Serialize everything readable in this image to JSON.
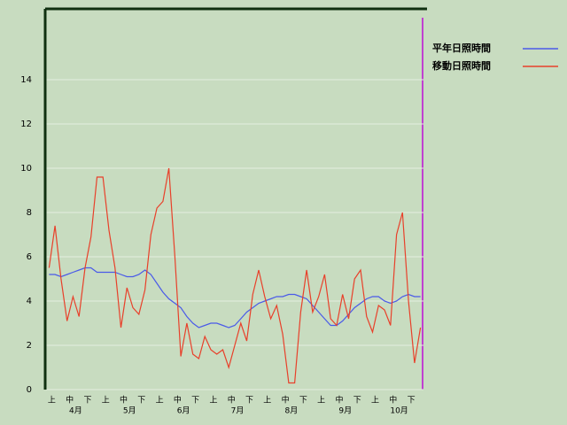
{
  "chart_data": {
    "type": "line",
    "categories": [
      "上",
      null,
      null,
      "中",
      null,
      null,
      "下",
      null,
      null,
      "上",
      null,
      null,
      "中",
      null,
      null,
      "下",
      null,
      null,
      "上",
      null,
      null,
      "中",
      null,
      null,
      "下",
      null,
      null,
      "上",
      null,
      null,
      "中",
      null,
      null,
      "下",
      null,
      null,
      "上",
      null,
      null,
      "中",
      null,
      null,
      "下",
      null,
      null,
      "上",
      null,
      null,
      "中",
      null,
      null,
      "下",
      null,
      null,
      "上",
      null,
      null,
      "中",
      null,
      null,
      "下",
      null,
      null
    ],
    "months": [
      "4月",
      "5月",
      "6月",
      "7月",
      "8月",
      "9月",
      "10月"
    ],
    "ylim": [
      0,
      17.2
    ],
    "yticks": [
      0,
      2,
      4,
      6,
      8,
      10,
      12,
      14
    ],
    "grid": true,
    "series": [
      {
        "name": "平年日照時間",
        "color": "#4a5ae8",
        "values": [
          5.2,
          5.2,
          5.1,
          5.2,
          5.3,
          5.4,
          5.5,
          5.5,
          5.3,
          5.3,
          5.3,
          5.3,
          5.2,
          5.1,
          5.1,
          5.2,
          5.4,
          5.2,
          4.8,
          4.4,
          4.1,
          3.9,
          3.7,
          3.3,
          3.0,
          2.8,
          2.9,
          3.0,
          3.0,
          2.9,
          2.8,
          2.9,
          3.2,
          3.5,
          3.7,
          3.9,
          4.0,
          4.1,
          4.2,
          4.2,
          4.3,
          4.3,
          4.2,
          4.1,
          3.8,
          3.5,
          3.2,
          2.9,
          2.9,
          3.1,
          3.4,
          3.7,
          3.9,
          4.1,
          4.2,
          4.2,
          4.0,
          3.9,
          4.0,
          4.2,
          4.3,
          4.2,
          4.2
        ]
      },
      {
        "name": "移動日照時間",
        "color": "#e8402a",
        "values": [
          5.5,
          7.4,
          5.0,
          3.1,
          4.2,
          3.3,
          5.5,
          6.9,
          9.6,
          9.6,
          7.2,
          5.5,
          2.8,
          4.6,
          3.7,
          3.4,
          4.5,
          7.0,
          8.2,
          8.5,
          10.0,
          6.0,
          1.5,
          3.0,
          1.6,
          1.4,
          2.4,
          1.8,
          1.6,
          1.8,
          1.0,
          2.0,
          3.0,
          2.2,
          4.3,
          5.4,
          4.2,
          3.2,
          3.8,
          2.5,
          0.3,
          0.3,
          3.5,
          5.4,
          3.5,
          4.2,
          5.2,
          3.2,
          2.9,
          4.3,
          3.2,
          5.0,
          5.4,
          3.3,
          2.6,
          3.8,
          3.6,
          2.9,
          7.0,
          8.0,
          4.0,
          1.2,
          2.8
        ]
      }
    ]
  }
}
